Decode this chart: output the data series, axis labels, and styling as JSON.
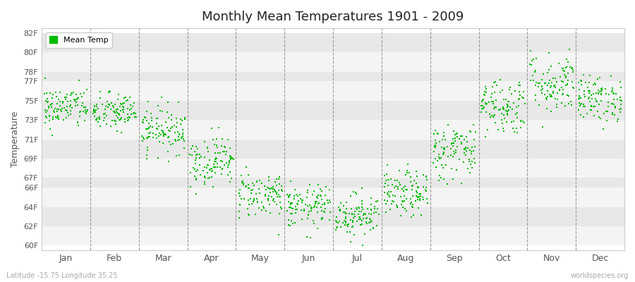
{
  "title": "Monthly Mean Temperatures 1901 - 2009",
  "ylabel": "Temperature",
  "xlabel_bottom_left": "Latitude -15.75 Longitude 35.25",
  "xlabel_bottom_right": "worldspecies.org",
  "legend_label": "Mean Temp",
  "dot_color": "#00bb00",
  "background_color": "#ffffff",
  "band_color_light": "#e8e8e8",
  "band_color_white": "#f4f4f4",
  "yticks": [
    60,
    62,
    64,
    66,
    67,
    69,
    71,
    73,
    75,
    77,
    78,
    80,
    82
  ],
  "ytick_labels": [
    "60F",
    "62F",
    "64F",
    "66F",
    "67F",
    "69F",
    "71F",
    "73F",
    "75F",
    "77F",
    "78F",
    "80F",
    "82F"
  ],
  "months": [
    "Jan",
    "Feb",
    "Mar",
    "Apr",
    "May",
    "Jun",
    "Jul",
    "Aug",
    "Sep",
    "Oct",
    "Nov",
    "Dec"
  ],
  "mean_temps_F": [
    74.3,
    73.8,
    72.0,
    68.8,
    65.3,
    64.0,
    63.2,
    65.3,
    69.8,
    74.5,
    76.8,
    75.2
  ],
  "std_temps_F": [
    1.1,
    1.0,
    1.2,
    1.3,
    1.2,
    1.1,
    1.1,
    1.2,
    1.5,
    1.5,
    1.6,
    1.2
  ],
  "n_years": 109,
  "ylim": [
    59.5,
    82.5
  ],
  "xlim": [
    0,
    12
  ]
}
